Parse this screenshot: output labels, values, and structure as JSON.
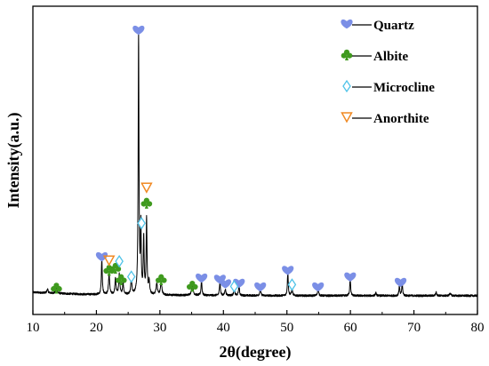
{
  "chart_data": {
    "type": "line",
    "title": "",
    "xlabel": "2θ(degree)",
    "ylabel": "Intensity(a.u.)",
    "xlim": [
      10,
      80
    ],
    "x_ticks": [
      10,
      20,
      30,
      40,
      50,
      60,
      70,
      80
    ],
    "ylim": [
      0,
      1000
    ],
    "y_ticks_shown": false,
    "grid": false,
    "legend_position": "top-right",
    "colors": {
      "pattern": "#000000",
      "quartz": "#7b8fe6",
      "albite": "#3f9a1e",
      "microcline": "#4fc3e8",
      "anorthite": "#f08a24"
    },
    "legend": [
      {
        "label": "Quartz",
        "symbol": "heart",
        "color": "#7b8fe6"
      },
      {
        "label": "Albite",
        "symbol": "club",
        "color": "#3f9a1e"
      },
      {
        "label": "Microcline",
        "symbol": "diamond",
        "color": "#4fc3e8"
      },
      {
        "label": "Anorthite",
        "symbol": "triangle-down",
        "color": "#f08a24"
      }
    ],
    "baseline": [
      [
        10,
        78
      ],
      [
        14,
        74
      ],
      [
        18,
        71
      ],
      [
        22,
        70
      ],
      [
        26,
        69
      ],
      [
        30,
        68
      ],
      [
        40,
        67
      ],
      [
        50,
        66
      ],
      [
        60,
        66
      ],
      [
        70,
        66
      ],
      [
        80,
        66
      ]
    ],
    "peaks": [
      {
        "x": 12.3,
        "height": 14,
        "width": 0.1
      },
      {
        "x": 13.7,
        "height": 20,
        "width": 0.12
      },
      {
        "x": 20.85,
        "height": 128,
        "width": 0.08
      },
      {
        "x": 22.0,
        "height": 75,
        "width": 0.1
      },
      {
        "x": 23.0,
        "height": 55,
        "width": 0.1
      },
      {
        "x": 23.6,
        "height": 70,
        "width": 0.1
      },
      {
        "x": 24.2,
        "height": 40,
        "width": 0.1
      },
      {
        "x": 25.5,
        "height": 56,
        "width": 0.1
      },
      {
        "x": 26.64,
        "height": 918,
        "width": 0.075
      },
      {
        "x": 27.0,
        "height": 235,
        "width": 0.07
      },
      {
        "x": 27.45,
        "height": 200,
        "width": 0.08
      },
      {
        "x": 27.9,
        "height": 265,
        "width": 0.08
      },
      {
        "x": 28.3,
        "height": 45,
        "width": 0.1
      },
      {
        "x": 29.5,
        "height": 40,
        "width": 0.12
      },
      {
        "x": 30.2,
        "height": 48,
        "width": 0.12
      },
      {
        "x": 35.1,
        "height": 34,
        "width": 0.15
      },
      {
        "x": 36.55,
        "height": 55,
        "width": 0.08
      },
      {
        "x": 39.45,
        "height": 52,
        "width": 0.08
      },
      {
        "x": 40.3,
        "height": 22,
        "width": 0.1
      },
      {
        "x": 41.7,
        "height": 20,
        "width": 0.1
      },
      {
        "x": 42.45,
        "height": 38,
        "width": 0.08
      },
      {
        "x": 45.8,
        "height": 22,
        "width": 0.1
      },
      {
        "x": 50.14,
        "height": 86,
        "width": 0.08
      },
      {
        "x": 50.8,
        "height": 24,
        "width": 0.1
      },
      {
        "x": 54.9,
        "height": 24,
        "width": 0.1
      },
      {
        "x": 59.96,
        "height": 63,
        "width": 0.08
      },
      {
        "x": 64.0,
        "height": 10,
        "width": 0.1
      },
      {
        "x": 67.7,
        "height": 34,
        "width": 0.08
      },
      {
        "x": 68.15,
        "height": 46,
        "width": 0.08
      },
      {
        "x": 73.5,
        "height": 12,
        "width": 0.1
      },
      {
        "x": 75.7,
        "height": 10,
        "width": 0.1
      }
    ],
    "markers": [
      {
        "phase": "quartz",
        "x": 26.64,
        "y": 1000
      },
      {
        "phase": "quartz",
        "x": 20.85,
        "y": 203
      },
      {
        "phase": "quartz",
        "x": 36.55,
        "y": 128
      },
      {
        "phase": "quartz",
        "x": 39.45,
        "y": 124
      },
      {
        "phase": "quartz",
        "x": 40.3,
        "y": 108
      },
      {
        "phase": "quartz",
        "x": 42.45,
        "y": 110
      },
      {
        "phase": "quartz",
        "x": 45.8,
        "y": 97
      },
      {
        "phase": "quartz",
        "x": 50.14,
        "y": 155
      },
      {
        "phase": "quartz",
        "x": 54.9,
        "y": 97
      },
      {
        "phase": "quartz",
        "x": 59.96,
        "y": 132
      },
      {
        "phase": "quartz",
        "x": 67.9,
        "y": 113
      },
      {
        "phase": "albite",
        "x": 13.7,
        "y": 92
      },
      {
        "phase": "albite",
        "x": 22.0,
        "y": 155
      },
      {
        "phase": "albite",
        "x": 23.0,
        "y": 162
      },
      {
        "phase": "albite",
        "x": 23.9,
        "y": 122
      },
      {
        "phase": "albite",
        "x": 27.9,
        "y": 391
      },
      {
        "phase": "albite",
        "x": 30.2,
        "y": 122
      },
      {
        "phase": "albite",
        "x": 35.1,
        "y": 99
      },
      {
        "phase": "microcline",
        "x": 23.6,
        "y": 187
      },
      {
        "phase": "microcline",
        "x": 25.5,
        "y": 133
      },
      {
        "phase": "microcline",
        "x": 27.1,
        "y": 321
      },
      {
        "phase": "microcline",
        "x": 41.7,
        "y": 99
      },
      {
        "phase": "microcline",
        "x": 50.8,
        "y": 105
      },
      {
        "phase": "anorthite",
        "x": 22.0,
        "y": 190
      },
      {
        "phase": "anorthite",
        "x": 27.9,
        "y": 446
      }
    ]
  }
}
